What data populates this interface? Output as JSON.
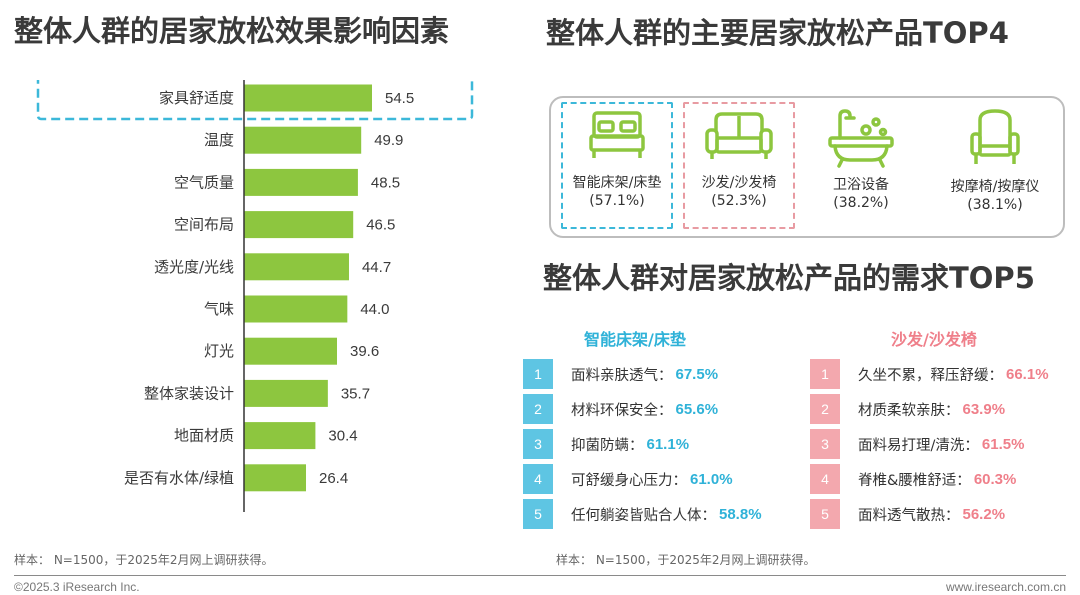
{
  "left_title": "整体人群的居家放松效果影响因素",
  "right_title": "整体人群的主要居家放松产品TOP4",
  "demand_title": "整体人群对居家放松产品的需求TOP5",
  "chart_data": {
    "type": "bar",
    "orientation": "horizontal",
    "title": "整体人群的居家放松效果影响因素",
    "categories": [
      "家具舒适度",
      "温度",
      "空气质量",
      "空间布局",
      "透光度/光线",
      "气味",
      "灯光",
      "整体家装设计",
      "地面材质",
      "是否有水体/绿植"
    ],
    "values": [
      54.5,
      49.9,
      48.5,
      46.5,
      44.7,
      44.0,
      39.6,
      35.7,
      30.4,
      26.4
    ],
    "value_labels": [
      "54.5",
      "49.9",
      "48.5",
      "46.5",
      "44.7",
      "44.0",
      "39.6",
      "35.7",
      "30.4",
      "26.4"
    ],
    "highlighted_category": "家具舒适度",
    "bar_color": "#8dc63f",
    "highlight_color": "#3cb8d9",
    "grid": false
  },
  "products": {
    "items": [
      {
        "name": "智能床架/床垫",
        "pct": "(57.1%)",
        "icon": "bed-icon"
      },
      {
        "name": "沙发/沙发椅",
        "pct": "(52.3%)",
        "icon": "sofa-icon"
      },
      {
        "name": "卫浴设备",
        "pct": "(38.2%)",
        "icon": "bathtub-icon"
      },
      {
        "name": "按摩椅/按摩仪",
        "pct": "(38.1%)",
        "icon": "massage-chair-icon"
      }
    ],
    "icon_color": "#8dc63f"
  },
  "demand": {
    "bed": {
      "heading": "智能床架/床垫",
      "color": "#2fb2d8",
      "rows": [
        {
          "num": "1",
          "text": "面料亲肤透气：",
          "pct": "67.5%"
        },
        {
          "num": "2",
          "text": "材料环保安全：",
          "pct": "65.6%"
        },
        {
          "num": "3",
          "text": "抑菌防螨：",
          "pct": "61.1%"
        },
        {
          "num": "4",
          "text": "可舒缓身心压力：",
          "pct": "61.0%"
        },
        {
          "num": "5",
          "text": "任何躺姿皆贴合人体：",
          "pct": "58.8%"
        }
      ]
    },
    "sofa": {
      "heading": "沙发/沙发椅",
      "color": "#ef7f8a",
      "rows": [
        {
          "num": "1",
          "text": "久坐不累，释压舒缓：",
          "pct": "66.1%"
        },
        {
          "num": "2",
          "text": "材质柔软亲肤：",
          "pct": "63.9%"
        },
        {
          "num": "3",
          "text": "面料易打理/清洗：",
          "pct": "61.5%"
        },
        {
          "num": "4",
          "text": "脊椎&腰椎舒适：",
          "pct": "60.3%"
        },
        {
          "num": "5",
          "text": "面料透气散热：",
          "pct": "56.2%"
        }
      ]
    }
  },
  "notes": {
    "left": "样本： N=1500，于2025年2月网上调研获得。",
    "right": "样本： N=1500，于2025年2月网上调研获得。"
  },
  "footer": {
    "copyright": "©2025.3 iResearch Inc.",
    "website": "www.iresearch.com.cn"
  }
}
